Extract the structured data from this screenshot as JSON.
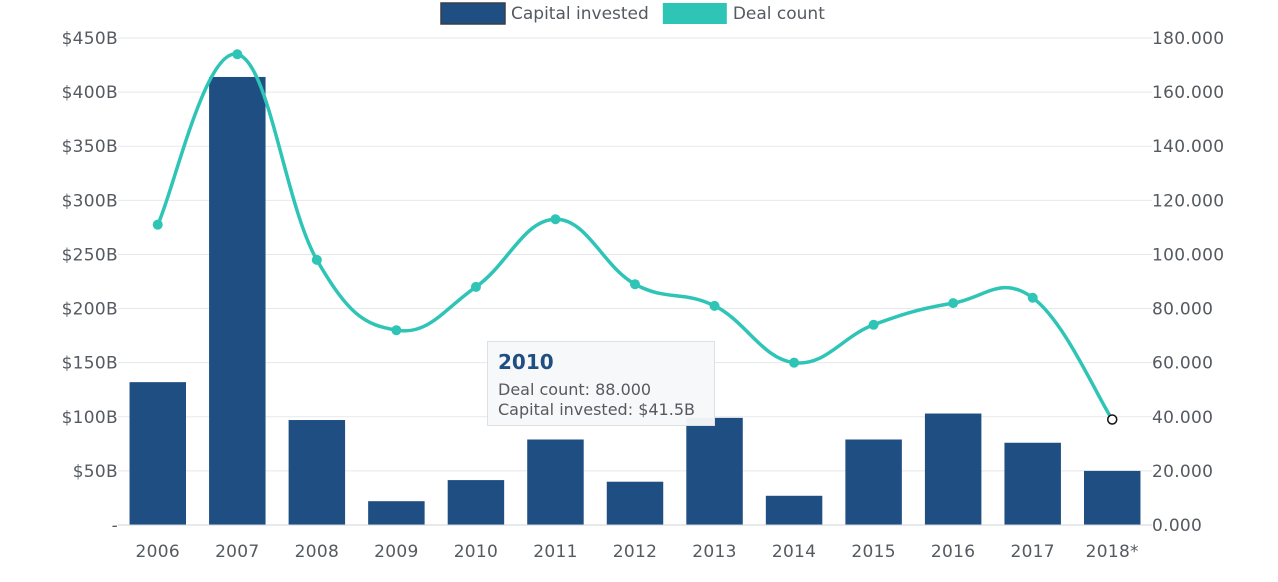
{
  "chart_data": {
    "type": "bar",
    "categories": [
      "2006",
      "2007",
      "2008",
      "2009",
      "2010",
      "2011",
      "2012",
      "2013",
      "2014",
      "2015",
      "2016",
      "2017",
      "2018*"
    ],
    "series": [
      {
        "name": "Capital invested",
        "type": "bar",
        "axis": "left",
        "values": [
          132,
          414,
          97,
          22,
          41.5,
          79,
          40,
          99,
          27,
          79,
          103,
          76,
          50
        ]
      },
      {
        "name": "Deal count",
        "type": "line",
        "axis": "right",
        "values": [
          111,
          174,
          98,
          72,
          88,
          113,
          89,
          81,
          60,
          74,
          82,
          84,
          39
        ]
      }
    ],
    "y_left": {
      "ticks": [
        "-",
        "$50B",
        "$100B",
        "$150B",
        "$200B",
        "$250B",
        "$300B",
        "$350B",
        "$400B",
        "$450B"
      ],
      "ylim": [
        0,
        450
      ]
    },
    "y_right": {
      "ticks": [
        "0.000",
        "20.000",
        "40.000",
        "60.000",
        "80.000",
        "100.000",
        "120.000",
        "140.000",
        "160.000",
        "180.000"
      ],
      "ylim": [
        0,
        180
      ]
    },
    "legend": {
      "placement": "top-center",
      "items": [
        {
          "label": "Capital invested",
          "color": "#1f4e82"
        },
        {
          "label": "Deal count",
          "color": "#2ec4b6"
        }
      ]
    },
    "grid": true,
    "colors": {
      "bar": "#1f4e82",
      "line": "#2ec4b6",
      "hover_marker": "#ffffff"
    },
    "hovered_point": "2018*",
    "tooltip": {
      "title": "2010",
      "deal_label": "Deal count:",
      "deal_value": "88.000",
      "capital_label": "Capital invested:",
      "capital_value": "$41.5B"
    }
  }
}
